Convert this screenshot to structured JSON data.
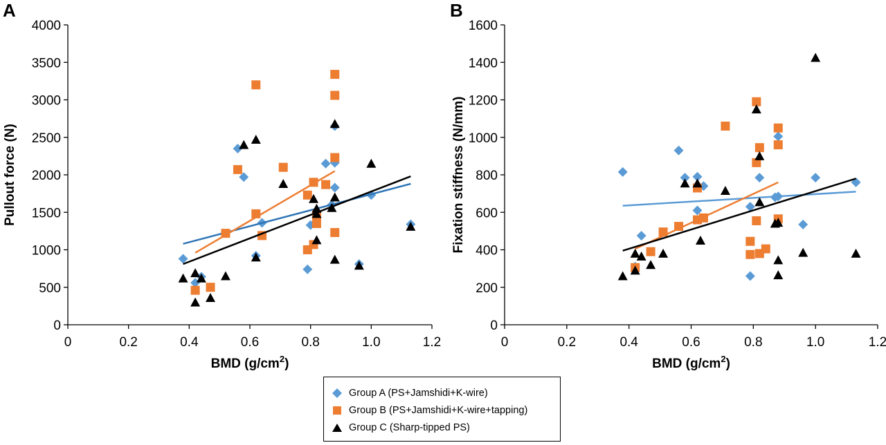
{
  "chart_data": [
    {
      "type": "scatter",
      "panel": "A",
      "title": "",
      "xlabel": "BMD (g/cm",
      "xlabel_sup": "2",
      "xlabel_end": ")",
      "ylabel": "Pullout force (N)",
      "xlim": [
        0,
        1.2
      ],
      "ylim": [
        0,
        4000
      ],
      "xticks": [
        "0",
        "0.2",
        "0.4",
        "0.6",
        "0.8",
        "1.0",
        "1.2"
      ],
      "yticks": [
        "0",
        "500",
        "1000",
        "1500",
        "2000",
        "2500",
        "3000",
        "3500",
        "4000"
      ],
      "series": [
        {
          "name": "Group A (PS+Jamshidi+K-wire)",
          "color": "#5b9bd5",
          "marker": "diamond",
          "points": [
            [
              0.38,
              880
            ],
            [
              0.42,
              560
            ],
            [
              0.44,
              640
            ],
            [
              0.56,
              2350
            ],
            [
              0.58,
              1970
            ],
            [
              0.62,
              920
            ],
            [
              0.64,
              1360
            ],
            [
              0.79,
              740
            ],
            [
              0.8,
              1330
            ],
            [
              0.82,
              1430
            ],
            [
              0.85,
              2150
            ],
            [
              0.87,
              1600
            ],
            [
              0.88,
              2650
            ],
            [
              0.88,
              2160
            ],
            [
              0.88,
              1830
            ],
            [
              0.96,
              810
            ],
            [
              1.0,
              1730
            ],
            [
              1.13,
              1340
            ]
          ],
          "trend": [
            [
              0.38,
              1080
            ],
            [
              1.13,
              1880
            ]
          ],
          "trend_color": "#2e75b6"
        },
        {
          "name": "Group B (PS+Jamshidi+K-wire+tapping)",
          "color": "#ed7d31",
          "marker": "square",
          "points": [
            [
              0.42,
              460
            ],
            [
              0.47,
              500
            ],
            [
              0.52,
              1220
            ],
            [
              0.56,
              2070
            ],
            [
              0.62,
              3200
            ],
            [
              0.62,
              1480
            ],
            [
              0.64,
              1190
            ],
            [
              0.71,
              2100
            ],
            [
              0.79,
              1730
            ],
            [
              0.79,
              1000
            ],
            [
              0.81,
              1900
            ],
            [
              0.81,
              1070
            ],
            [
              0.82,
              1470
            ],
            [
              0.82,
              1350
            ],
            [
              0.85,
              1870
            ],
            [
              0.88,
              3340
            ],
            [
              0.88,
              3060
            ],
            [
              0.88,
              2230
            ],
            [
              0.88,
              1230
            ]
          ],
          "trend": [
            [
              0.42,
              960
            ],
            [
              0.88,
              2050
            ]
          ],
          "trend_color": "#ed7d31"
        },
        {
          "name": "Group C (Sharp-tipped PS)",
          "color": "#000000",
          "marker": "triangle",
          "points": [
            [
              0.38,
              620
            ],
            [
              0.42,
              690
            ],
            [
              0.42,
              300
            ],
            [
              0.44,
              620
            ],
            [
              0.47,
              360
            ],
            [
              0.52,
              650
            ],
            [
              0.58,
              2400
            ],
            [
              0.62,
              2470
            ],
            [
              0.62,
              900
            ],
            [
              0.71,
              1880
            ],
            [
              0.81,
              1680
            ],
            [
              0.82,
              1550
            ],
            [
              0.82,
              1480
            ],
            [
              0.82,
              1130
            ],
            [
              0.87,
              1560
            ],
            [
              0.88,
              2680
            ],
            [
              0.88,
              1700
            ],
            [
              0.88,
              870
            ],
            [
              0.96,
              790
            ],
            [
              1.0,
              2150
            ],
            [
              1.13,
              1310
            ]
          ],
          "trend": [
            [
              0.38,
              810
            ],
            [
              1.13,
              1980
            ]
          ],
          "trend_color": "#000000"
        }
      ]
    },
    {
      "type": "scatter",
      "panel": "B",
      "title": "",
      "xlabel": "BMD (g/cm",
      "xlabel_sup": "2",
      "xlabel_end": ")",
      "ylabel": "Fixation stiffness (N/mm)",
      "xlim": [
        0,
        1.2
      ],
      "ylim": [
        0,
        1600
      ],
      "xticks": [
        "0",
        "0.2",
        "0.4",
        "0.6",
        "0.8",
        "1.0",
        "1.2"
      ],
      "yticks": [
        "0",
        "200",
        "400",
        "600",
        "800",
        "1000",
        "1200",
        "1400",
        "1600"
      ],
      "series": [
        {
          "name": "Group A (PS+Jamshidi+K-wire)",
          "color": "#5b9bd5",
          "marker": "diamond",
          "points": [
            [
              0.38,
              815
            ],
            [
              0.42,
              310
            ],
            [
              0.44,
              475
            ],
            [
              0.56,
              930
            ],
            [
              0.58,
              785
            ],
            [
              0.62,
              790
            ],
            [
              0.62,
              610
            ],
            [
              0.64,
              740
            ],
            [
              0.79,
              630
            ],
            [
              0.79,
              260
            ],
            [
              0.82,
              785
            ],
            [
              0.87,
              680
            ],
            [
              0.88,
              1005
            ],
            [
              0.88,
              685
            ],
            [
              0.96,
              535
            ],
            [
              1.0,
              785
            ],
            [
              1.13,
              760
            ]
          ],
          "trend": [
            [
              0.38,
              635
            ],
            [
              1.13,
              710
            ]
          ],
          "trend_color": "#5b9bd5"
        },
        {
          "name": "Group B (PS+Jamshidi+K-wire+tapping)",
          "color": "#ed7d31",
          "marker": "square",
          "points": [
            [
              0.42,
              305
            ],
            [
              0.47,
              390
            ],
            [
              0.51,
              495
            ],
            [
              0.56,
              525
            ],
            [
              0.62,
              730
            ],
            [
              0.62,
              560
            ],
            [
              0.64,
              570
            ],
            [
              0.71,
              1060
            ],
            [
              0.79,
              445
            ],
            [
              0.79,
              375
            ],
            [
              0.81,
              1190
            ],
            [
              0.81,
              865
            ],
            [
              0.81,
              555
            ],
            [
              0.82,
              945
            ],
            [
              0.82,
              380
            ],
            [
              0.84,
              405
            ],
            [
              0.88,
              1050
            ],
            [
              0.88,
              960
            ],
            [
              0.88,
              565
            ]
          ],
          "trend": [
            [
              0.42,
              405
            ],
            [
              0.88,
              760
            ]
          ],
          "trend_color": "#ed7d31"
        },
        {
          "name": "Group C (Sharp-tipped PS)",
          "color": "#000000",
          "marker": "triangle",
          "points": [
            [
              0.38,
              260
            ],
            [
              0.42,
              380
            ],
            [
              0.42,
              290
            ],
            [
              0.44,
              365
            ],
            [
              0.47,
              320
            ],
            [
              0.51,
              380
            ],
            [
              0.58,
              755
            ],
            [
              0.62,
              755
            ],
            [
              0.63,
              450
            ],
            [
              0.71,
              715
            ],
            [
              0.81,
              1150
            ],
            [
              0.82,
              900
            ],
            [
              0.82,
              655
            ],
            [
              0.87,
              540
            ],
            [
              0.88,
              545
            ],
            [
              0.88,
              345
            ],
            [
              0.88,
              265
            ],
            [
              0.96,
              385
            ],
            [
              1.0,
              1425
            ],
            [
              1.13,
              380
            ]
          ],
          "trend": [
            [
              0.38,
              395
            ],
            [
              1.13,
              780
            ]
          ],
          "trend_color": "#000000"
        }
      ]
    }
  ],
  "legend": {
    "items": [
      {
        "label": "Group A (PS+Jamshidi+K-wire)",
        "color": "#5b9bd5",
        "marker": "diamond"
      },
      {
        "label": "Group B (PS+Jamshidi+K-wire+tapping)",
        "color": "#ed7d31",
        "marker": "square"
      },
      {
        "label": "Group C (Sharp-tipped PS)",
        "color": "#000000",
        "marker": "triangle"
      }
    ]
  }
}
